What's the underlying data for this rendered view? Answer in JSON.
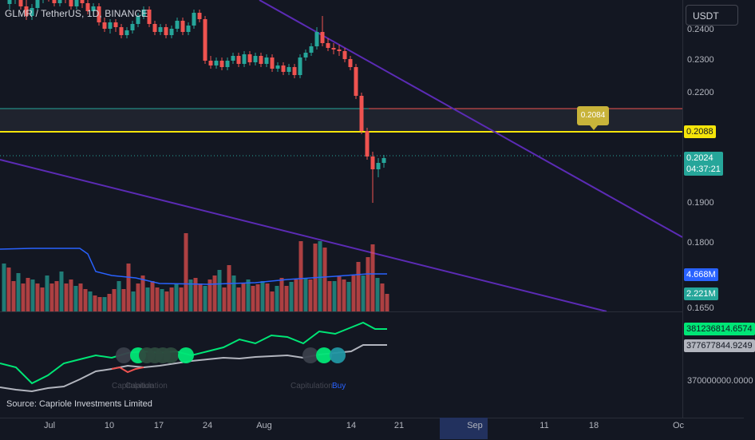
{
  "header": {
    "title": "GLMR / TetherUS, 1D, BINANCE"
  },
  "currency_button": "USDT",
  "price_axis": {
    "ticks": [
      "0.2400",
      "0.2300",
      "0.2200",
      "0.1900",
      "0.1800",
      "0.1650"
    ],
    "current_price": "0.2024",
    "countdown": "04:37:21",
    "level_label": "0.2088",
    "tooltip_label": "0.2084",
    "volume_labels": [
      "4.668M",
      "2.221M"
    ]
  },
  "indicator_axis": {
    "labels": [
      "381236814.6574",
      "377677844.9249"
    ],
    "tick": "370000000.0000"
  },
  "time_axis": [
    "Jul",
    "10",
    "17",
    "24",
    "Aug",
    "14",
    "21",
    "Sep",
    "11",
    "18",
    "Oc"
  ],
  "annotations": {
    "capitulation_1": "Capitulation",
    "capitulation_2": "Capitulation",
    "capitulation_3": "Capitulation",
    "buy": "Buy",
    "source": "Source: Capriole Investments Limited"
  },
  "colors": {
    "background": "#131722",
    "up": "#26a69a",
    "down": "#ef5350",
    "level_line": "#f5e50a",
    "trendline": "#5b2bb5",
    "volume_ma": "#2962ff",
    "ind_green": "#00e676",
    "ind_grey": "#b2b5be"
  }
}
